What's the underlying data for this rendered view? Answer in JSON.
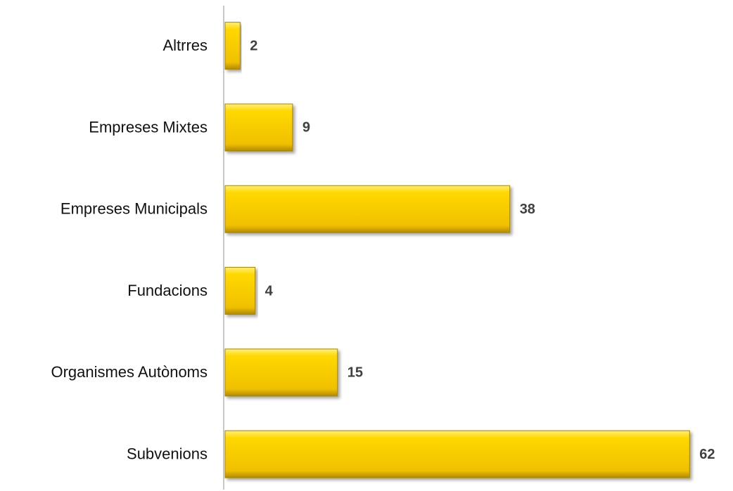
{
  "chart_data": {
    "type": "bar",
    "orientation": "horizontal",
    "categories": [
      "Altrres",
      "Empreses Mixtes",
      "Empreses Municipals",
      "Fundacions",
      "Organismes Autònoms",
      "Subvenions"
    ],
    "values": [
      2,
      9,
      38,
      4,
      15,
      62
    ],
    "color": "#f5c800"
  }
}
